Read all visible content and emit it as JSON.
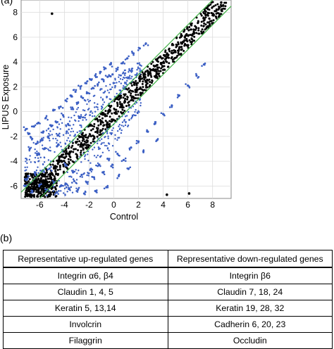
{
  "panel_a": {
    "label": "(a)"
  },
  "panel_b": {
    "label": "(b)"
  },
  "chart_data": {
    "type": "scatter",
    "title": "",
    "xlabel": "Control",
    "ylabel": "LIPUS Exposure",
    "xlim": [
      -7.5,
      9.5
    ],
    "ylim": [
      -7.0,
      9.0
    ],
    "xticks": [
      -6,
      -4,
      -2,
      0,
      2,
      4,
      6,
      8
    ],
    "yticks": [
      -6,
      -4,
      -2,
      0,
      2,
      4,
      6,
      8
    ],
    "grid": true,
    "reference_lines": [
      {
        "name": "",
        "type": "y=x+1",
        "intercept": 1,
        "slope": 1,
        "color": "#3cb043"
      },
      {
        "name": "",
        "type": "y=x-1",
        "intercept": -1,
        "slope": 1,
        "color": "#3cb043"
      }
    ],
    "colors": {
      "unchanged": "#000000",
      "changed": "#3b5fc4",
      "guide": "#3cb043"
    },
    "series": [
      {
        "role": "unchanged",
        "description_points": [
          [
            -5.0,
            7.9
          ],
          [
            4.3,
            -6.7
          ],
          [
            6.1,
            -6.6
          ],
          [
            -7.0,
            -6.8
          ],
          [
            8.7,
            8.8
          ]
        ],
        "band": {
          "x_start": -7.2,
          "x_end": 9.1,
          "spread": 0.9
        }
      },
      {
        "role": "changed",
        "points": [
          [
            -7.1,
            -1.4
          ],
          [
            -6.9,
            -1.8
          ],
          [
            -6.7,
            -2.1
          ],
          [
            -6.5,
            -1.2
          ],
          [
            -6.3,
            -2.6
          ],
          [
            -6.1,
            -0.9
          ],
          [
            -5.9,
            -2.3
          ],
          [
            -5.7,
            -1.6
          ],
          [
            -5.5,
            -0.5
          ],
          [
            -5.3,
            -2.0
          ],
          [
            -5.1,
            -1.1
          ],
          [
            -4.9,
            0.1
          ],
          [
            -4.7,
            -0.8
          ],
          [
            -4.5,
            -1.9
          ],
          [
            -4.3,
            0.4
          ],
          [
            -4.1,
            -0.3
          ],
          [
            -3.9,
            0.9
          ],
          [
            -3.7,
            -1.0
          ],
          [
            -3.5,
            1.3
          ],
          [
            -3.3,
            0.2
          ],
          [
            -3.1,
            1.6
          ],
          [
            -2.9,
            0.7
          ],
          [
            -2.7,
            2.0
          ],
          [
            -2.5,
            1.1
          ],
          [
            -2.3,
            2.3
          ],
          [
            -2.1,
            1.5
          ],
          [
            -1.9,
            2.6
          ],
          [
            -1.7,
            1.9
          ],
          [
            -1.5,
            2.9
          ],
          [
            -1.3,
            2.2
          ],
          [
            -1.1,
            3.2
          ],
          [
            -0.9,
            2.6
          ],
          [
            -0.7,
            3.5
          ],
          [
            -0.5,
            2.8
          ],
          [
            -0.3,
            3.8
          ],
          [
            -0.1,
            3.0
          ],
          [
            0.3,
            3.4
          ],
          [
            0.7,
            3.9
          ],
          [
            1.1,
            4.3
          ],
          [
            1.6,
            4.7
          ],
          [
            2.1,
            5.1
          ],
          [
            2.6,
            5.5
          ],
          [
            -6.8,
            -3.0
          ],
          [
            -6.2,
            -3.5
          ],
          [
            -5.6,
            -3.0
          ],
          [
            -4.6,
            -2.8
          ],
          [
            -3.8,
            -1.6
          ],
          [
            -2.8,
            -0.5
          ],
          [
            -4.6,
            -6.5
          ],
          [
            -4.3,
            -6.0
          ],
          [
            -3.9,
            -5.8
          ],
          [
            -3.6,
            -6.2
          ],
          [
            -3.2,
            -5.6
          ],
          [
            -2.9,
            -6.3
          ],
          [
            -2.6,
            -5.1
          ],
          [
            -2.2,
            -5.7
          ],
          [
            -1.9,
            -4.7
          ],
          [
            -1.6,
            -5.3
          ],
          [
            -1.2,
            -4.3
          ],
          [
            -0.9,
            -4.9
          ],
          [
            -0.5,
            -3.8
          ],
          [
            -0.2,
            -4.4
          ],
          [
            0.3,
            -3.4
          ],
          [
            0.8,
            -3.9
          ],
          [
            1.4,
            -2.9
          ],
          [
            2.0,
            -2.4
          ],
          [
            2.7,
            -1.6
          ],
          [
            3.3,
            -1.0
          ],
          [
            4.0,
            -0.2
          ],
          [
            4.7,
            0.5
          ],
          [
            5.3,
            1.3
          ],
          [
            6.0,
            2.1
          ],
          [
            6.7,
            2.9
          ],
          [
            7.3,
            3.8
          ],
          [
            -3.9,
            -4.3
          ],
          [
            -3.3,
            -4.9
          ],
          [
            -2.4,
            -6.6
          ],
          [
            -1.5,
            -6.4
          ],
          [
            -0.6,
            -6.1
          ],
          [
            0.4,
            -5.2
          ],
          [
            1.2,
            -4.6
          ],
          [
            2.4,
            -3.2
          ],
          [
            3.5,
            -2.3
          ],
          [
            -7.2,
            -6.0
          ],
          [
            -6.6,
            -6.4
          ],
          [
            -6.0,
            -5.9
          ],
          [
            -5.4,
            -6.3
          ],
          [
            -4.8,
            -5.7
          ],
          [
            -7.0,
            -5.4
          ],
          [
            -6.4,
            -5.0
          ],
          [
            -5.8,
            -4.8
          ],
          [
            -5.2,
            -4.6
          ]
        ]
      }
    ]
  },
  "table": {
    "headers": [
      "Representative up-regulated genes",
      "Representative down-regulated genes"
    ],
    "rows": [
      [
        "Integrin α6,   β4",
        "Integrin β6"
      ],
      [
        "Claudin 1, 4, 5",
        "Claudin 7, 18, 24"
      ],
      [
        "Keratin 5, 13,14",
        "Keratin 19, 28, 32"
      ],
      [
        "Involcrin",
        "Cadherin 6, 20, 23"
      ],
      [
        "Filaggrin",
        "Occludin"
      ]
    ]
  }
}
